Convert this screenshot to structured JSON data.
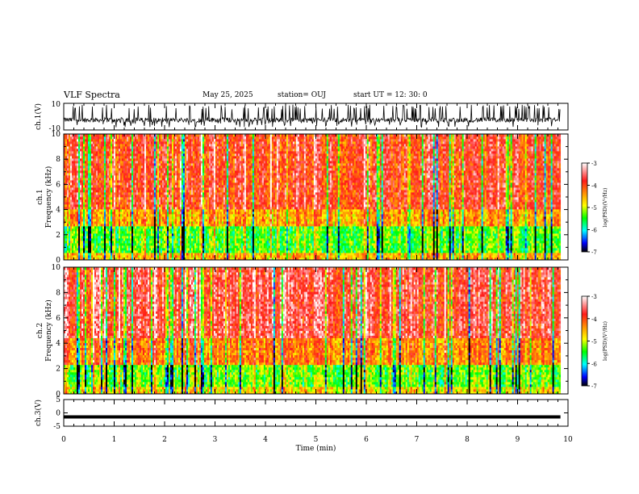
{
  "header": {
    "title": "VLF Spectra",
    "date": "May 25, 2025",
    "station": "station= OUJ",
    "start_ut": "start  UT =   12: 30: 0"
  },
  "colors": {
    "trace": "#000000",
    "frame": "#000000",
    "colormap": [
      "#ffffff",
      "#ff1a1a",
      "#ffb000",
      "#ffff00",
      "#00ff00",
      "#00ffff",
      "#0000ff",
      "#000000"
    ]
  },
  "chart_data": [
    {
      "type": "line",
      "panel": "ch1-waveform",
      "ylabel": "ch.1(V)",
      "ylim": [
        -10,
        10
      ],
      "yticks": [
        "10",
        "-10"
      ],
      "description_values": {
        "baseline": -2.5,
        "range": [
          -8,
          9
        ]
      }
    },
    {
      "type": "heatmap",
      "panel": "ch1-spectrogram",
      "ylabel": "ch.1\nFrequency (kHz)",
      "ylim": [
        0,
        10
      ],
      "yticks": [
        "0",
        "2",
        "4",
        "6",
        "8",
        "10"
      ],
      "xlim": [
        0,
        10
      ],
      "colorbar": {
        "label": "log(PSD)(V²/Hz)",
        "range": [
          -7,
          -3
        ],
        "ticks": [
          "-3",
          "-4",
          "-5",
          "-6",
          "-7"
        ]
      },
      "band_levels": [
        {
          "f_range": [
            0,
            0.5
          ],
          "level": -4.6
        },
        {
          "f_range": [
            0.5,
            2.6
          ],
          "level": -5.4
        },
        {
          "f_range": [
            2.6,
            4.0
          ],
          "level": -4.5
        },
        {
          "f_range": [
            4.0,
            10.0
          ],
          "level": -3.9
        }
      ]
    },
    {
      "type": "heatmap",
      "panel": "ch2-spectrogram",
      "ylabel": "ch.2\nFrequency (kHz)",
      "ylim": [
        0,
        10
      ],
      "yticks": [
        "0",
        "2",
        "4",
        "6",
        "8",
        "10"
      ],
      "xlim": [
        0,
        10
      ],
      "colorbar": {
        "label": "log(PSD)(V²/Hz)",
        "range": [
          -7,
          -3
        ],
        "ticks": [
          "-3",
          "-4",
          "-5",
          "-6",
          "-7"
        ]
      },
      "band_levels": [
        {
          "f_range": [
            0,
            0.5
          ],
          "level": -4.8
        },
        {
          "f_range": [
            0.5,
            2.4
          ],
          "level": -5.3
        },
        {
          "f_range": [
            2.4,
            4.5
          ],
          "level": -4.3
        },
        {
          "f_range": [
            4.5,
            10.0
          ],
          "level": -3.7
        }
      ]
    },
    {
      "type": "line",
      "panel": "ch3-waveform",
      "ylabel": "ch.3(V)",
      "ylim": [
        -5,
        5
      ],
      "yticks": [
        "5",
        "0",
        "-5"
      ],
      "xlim": [
        0,
        10
      ],
      "xticks": [
        "0",
        "1",
        "2",
        "3",
        "4",
        "5",
        "6",
        "7",
        "8",
        "9",
        "10"
      ],
      "xlabel": "Time (min)",
      "x": [
        0,
        9.85
      ],
      "y": [
        -1.5,
        -1.5
      ]
    }
  ]
}
